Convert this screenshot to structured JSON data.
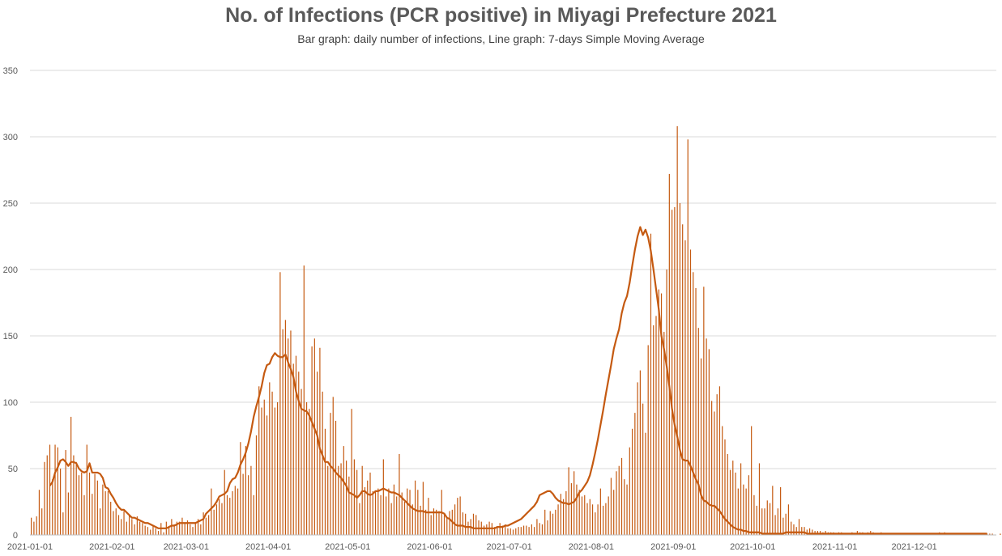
{
  "chart_data": {
    "type": "bar",
    "title": "No. of Infections (PCR positive) in Miyagi Prefecture 2021",
    "subtitle": "Bar graph: daily number of infections, Line graph: 7-days Simple Moving Average",
    "xlabel": "",
    "ylabel": "",
    "ylim": [
      0,
      350
    ],
    "y_ticks": [
      0,
      50,
      100,
      150,
      200,
      250,
      300,
      350
    ],
    "x_range": [
      "2021-01-01",
      "2021-12-31"
    ],
    "x_tick_labels": [
      "2021-01-01",
      "2021-02-01",
      "2021-03-01",
      "2021-04-01",
      "2021-05-01",
      "2021-06-01",
      "2021-07-01",
      "2021-08-01",
      "2021-09-01",
      "2021-10-01",
      "2021-11-01",
      "2021-12-01"
    ],
    "grid": true,
    "colors": {
      "bars": "#C55A11",
      "line": "#C55A11",
      "grid": "#D9D9D9"
    },
    "series": [
      {
        "type": "bar",
        "values": [
          13,
          10,
          14,
          34,
          20,
          55,
          60,
          68,
          42,
          68,
          66,
          50,
          17,
          64,
          32,
          89,
          60,
          55,
          45,
          47,
          30,
          68,
          47,
          31,
          46,
          41,
          20,
          38,
          33,
          33,
          25,
          18,
          20,
          15,
          12,
          18,
          10,
          15,
          12,
          8,
          14,
          10,
          9,
          7,
          6,
          4,
          7,
          5,
          3,
          9,
          2,
          10,
          6,
          12,
          8,
          10,
          10,
          13,
          9,
          11,
          8,
          6,
          9,
          12,
          8,
          17,
          13,
          15,
          35,
          19,
          23,
          27,
          24,
          49,
          30,
          28,
          33,
          37,
          35,
          70,
          46,
          67,
          45,
          52,
          30,
          75,
          112,
          96,
          102,
          90,
          115,
          108,
          96,
          100,
          198,
          155,
          162,
          148,
          154,
          129,
          135,
          123,
          110,
          203,
          100,
          95,
          142,
          148,
          123,
          141,
          108,
          80,
          52,
          92,
          104,
          86,
          52,
          54,
          67,
          56,
          44,
          95,
          57,
          49,
          24,
          52,
          36,
          41,
          47,
          33,
          33,
          35,
          30,
          57,
          29,
          35,
          24,
          38,
          29,
          61,
          32,
          25,
          35,
          34,
          23,
          41,
          34,
          22,
          40,
          19,
          28,
          15,
          20,
          19,
          18,
          34,
          15,
          13,
          18,
          19,
          23,
          28,
          29,
          17,
          16,
          10,
          12,
          16,
          15,
          11,
          10,
          7,
          8,
          10,
          9,
          6,
          6,
          9,
          7,
          8,
          5,
          5,
          4,
          5,
          6,
          6,
          7,
          7,
          6,
          8,
          6,
          12,
          9,
          8,
          19,
          11,
          18,
          16,
          19,
          23,
          31,
          27,
          33,
          51,
          39,
          48,
          38,
          34,
          29,
          30,
          24,
          27,
          23,
          17,
          23,
          35,
          22,
          24,
          29,
          43,
          34,
          48,
          52,
          58,
          42,
          38,
          66,
          80,
          92,
          115,
          124,
          99,
          77,
          143,
          227,
          158,
          165,
          185,
          182,
          153,
          200,
          272,
          245,
          247,
          308,
          250,
          234,
          222,
          298,
          215,
          198,
          186,
          156,
          133,
          187,
          148,
          140,
          101,
          93,
          106,
          112,
          82,
          72,
          61,
          49,
          56,
          47,
          35,
          54,
          38,
          35,
          45,
          82,
          30,
          22,
          54,
          20,
          20,
          26,
          24,
          37,
          15,
          20,
          36,
          13,
          16,
          23,
          10,
          8,
          6,
          12,
          6,
          6,
          4,
          5,
          4,
          3,
          3,
          3,
          2,
          3,
          2,
          2,
          2,
          1,
          2,
          2,
          1,
          1,
          1,
          2,
          1,
          3,
          2,
          2,
          1,
          2,
          3,
          2,
          1,
          1,
          2,
          1,
          1,
          1,
          1,
          0,
          1,
          0,
          1,
          1,
          0,
          0,
          1,
          0,
          1,
          0,
          0,
          1,
          1,
          1,
          1,
          1,
          2,
          1,
          2,
          1,
          1,
          1,
          0,
          0,
          1,
          0,
          1,
          0,
          1,
          1,
          1,
          1,
          1,
          1,
          1,
          1,
          1,
          0,
          0,
          1,
          0,
          0,
          1,
          1,
          1,
          1,
          1,
          1,
          2,
          1,
          1,
          2,
          1,
          1,
          2
        ]
      },
      {
        "type": "line",
        "values_note_excluded": true,
        "values": [
          null,
          null,
          null,
          null,
          null,
          null,
          null,
          37,
          40,
          47,
          51,
          56,
          57,
          55,
          52,
          55,
          55,
          54,
          50,
          48,
          47,
          48,
          54,
          47,
          47,
          47,
          46,
          43,
          36,
          35,
          31,
          28,
          24,
          21,
          19,
          19,
          17,
          15,
          13,
          13,
          12,
          11,
          10,
          9,
          9,
          8,
          7,
          6,
          5,
          5,
          5,
          5,
          6,
          7,
          7,
          8,
          9,
          9,
          9,
          9,
          9,
          9,
          9,
          10,
          11,
          12,
          16,
          18,
          20,
          22,
          25,
          29,
          30,
          31,
          33,
          39,
          42,
          43,
          47,
          53,
          57,
          62,
          69,
          78,
          89,
          97,
          104,
          112,
          122,
          128,
          129,
          134,
          137,
          135,
          134,
          134,
          136,
          130,
          125,
          119,
          108,
          101,
          95,
          94,
          93,
          90,
          85,
          80,
          75,
          65,
          60,
          55,
          55,
          52,
          50,
          47,
          45,
          43,
          40,
          37,
          32,
          31,
          30,
          28,
          30,
          33,
          33,
          31,
          30,
          31,
          33,
          33,
          34,
          35,
          34,
          33,
          32,
          32,
          31,
          30,
          28,
          26,
          24,
          22,
          20,
          19,
          18,
          18,
          18,
          17,
          17,
          17,
          17,
          17,
          17,
          17,
          16,
          13,
          12,
          10,
          8,
          7,
          7,
          7,
          6,
          6,
          6,
          5,
          5,
          5,
          5,
          5,
          5,
          5,
          5,
          5,
          6,
          6,
          6,
          7,
          7,
          8,
          9,
          10,
          11,
          12,
          14,
          16,
          18,
          20,
          22,
          25,
          30,
          31,
          32,
          33,
          33,
          31,
          28,
          26,
          25,
          24,
          24,
          23,
          24,
          25,
          28,
          32,
          34,
          37,
          40,
          45,
          53,
          62,
          72,
          83,
          94,
          106,
          117,
          128,
          140,
          148,
          155,
          167,
          175,
          180,
          190,
          203,
          215,
          225,
          232,
          226,
          230,
          224,
          214,
          200,
          185,
          170,
          150,
          140,
          127,
          112,
          95,
          83,
          74,
          64,
          57,
          56,
          56,
          52,
          47,
          42,
          38,
          30,
          26,
          25,
          23,
          22,
          22,
          20,
          18,
          15,
          12,
          10,
          8,
          6,
          5,
          4,
          4,
          3,
          3,
          2,
          2,
          2,
          2,
          2,
          1,
          1,
          1,
          1,
          1,
          1,
          1,
          1,
          1,
          2,
          2,
          2,
          2,
          2,
          2,
          2,
          2,
          1,
          1,
          1,
          1,
          1,
          1,
          1,
          1,
          1,
          1,
          1,
          1,
          1,
          1,
          1,
          1,
          1,
          1,
          1,
          1,
          1,
          1,
          1,
          1,
          1,
          1,
          1,
          1,
          1,
          1,
          1,
          1,
          1,
          1,
          1,
          1,
          1,
          1,
          1,
          1,
          1,
          1,
          1,
          1,
          1,
          1,
          1,
          1,
          1,
          1,
          1,
          1,
          1,
          1,
          1,
          1,
          1,
          1,
          1,
          1,
          1,
          1,
          1,
          1,
          1,
          1,
          1,
          1,
          1
        ]
      }
    ]
  }
}
